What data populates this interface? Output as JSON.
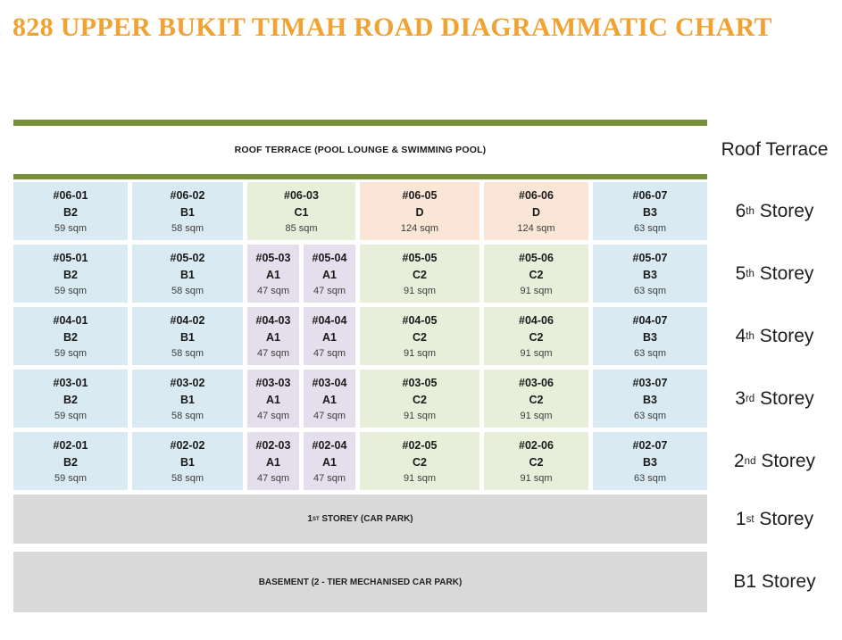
{
  "title": "828 UPPER BUKIT TIMAH ROAD DIAGRAMMATIC CHART",
  "colors": {
    "title_orange": "#F0A232",
    "bar_green": "#78923C",
    "cell_blue": "#D9EAF3",
    "cell_green": "#E7EFDB",
    "cell_purple": "#E5DEED",
    "cell_peach": "#FBE5D6",
    "cell_gray": "#D9D9D9"
  },
  "roof": {
    "text": "ROOF TERRACE (POOL LOUNGE & SWIMMING POOL)",
    "label": {
      "pre": "Roof Terrace",
      "sup": "",
      "post": ""
    }
  },
  "storeys": [
    {
      "label": {
        "pre": "6",
        "sup": "th",
        "post": " Storey"
      },
      "units": [
        {
          "no": "#06-01",
          "type": "B2",
          "area": "59 sqm",
          "color": "cell_blue",
          "span": 1
        },
        {
          "no": "#06-02",
          "type": "B1",
          "area": "58 sqm",
          "color": "cell_blue",
          "span": 1
        },
        {
          "no": "#06-03",
          "type": "C1",
          "area": "85 sqm",
          "color": "cell_green",
          "span": 2
        },
        {
          "no": "#06-05",
          "type": "D",
          "area": "124 sqm",
          "color": "cell_peach",
          "span": 1
        },
        {
          "no": "#06-06",
          "type": "D",
          "area": "124 sqm",
          "color": "cell_peach",
          "span": 1
        },
        {
          "no": "#06-07",
          "type": "B3",
          "area": "63 sqm",
          "color": "cell_blue",
          "span": 1
        }
      ]
    },
    {
      "label": {
        "pre": "5",
        "sup": "th",
        "post": " Storey"
      },
      "units": [
        {
          "no": "#05-01",
          "type": "B2",
          "area": "59 sqm",
          "color": "cell_blue",
          "span": 1
        },
        {
          "no": "#05-02",
          "type": "B1",
          "area": "58 sqm",
          "color": "cell_blue",
          "span": 1
        },
        {
          "no": "#05-03",
          "type": "A1",
          "area": "47 sqm",
          "color": "cell_purple",
          "span": 1
        },
        {
          "no": "#05-04",
          "type": "A1",
          "area": "47 sqm",
          "color": "cell_purple",
          "span": 1
        },
        {
          "no": "#05-05",
          "type": "C2",
          "area": "91 sqm",
          "color": "cell_green",
          "span": 1
        },
        {
          "no": "#05-06",
          "type": "C2",
          "area": "91 sqm",
          "color": "cell_green",
          "span": 1
        },
        {
          "no": "#05-07",
          "type": "B3",
          "area": "63 sqm",
          "color": "cell_blue",
          "span": 1
        }
      ]
    },
    {
      "label": {
        "pre": "4",
        "sup": "th",
        "post": " Storey"
      },
      "units": [
        {
          "no": "#04-01",
          "type": "B2",
          "area": "59 sqm",
          "color": "cell_blue",
          "span": 1
        },
        {
          "no": "#04-02",
          "type": "B1",
          "area": "58 sqm",
          "color": "cell_blue",
          "span": 1
        },
        {
          "no": "#04-03",
          "type": "A1",
          "area": "47 sqm",
          "color": "cell_purple",
          "span": 1
        },
        {
          "no": "#04-04",
          "type": "A1",
          "area": "47 sqm",
          "color": "cell_purple",
          "span": 1
        },
        {
          "no": "#04-05",
          "type": "C2",
          "area": "91 sqm",
          "color": "cell_green",
          "span": 1
        },
        {
          "no": "#04-06",
          "type": "C2",
          "area": "91 sqm",
          "color": "cell_green",
          "span": 1
        },
        {
          "no": "#04-07",
          "type": "B3",
          "area": "63 sqm",
          "color": "cell_blue",
          "span": 1
        }
      ]
    },
    {
      "label": {
        "pre": "3",
        "sup": "rd",
        "post": " Storey"
      },
      "units": [
        {
          "no": "#03-01",
          "type": "B2",
          "area": "59 sqm",
          "color": "cell_blue",
          "span": 1
        },
        {
          "no": "#03-02",
          "type": "B1",
          "area": "58 sqm",
          "color": "cell_blue",
          "span": 1
        },
        {
          "no": "#03-03",
          "type": "A1",
          "area": "47 sqm",
          "color": "cell_purple",
          "span": 1
        },
        {
          "no": "#03-04",
          "type": "A1",
          "area": "47 sqm",
          "color": "cell_purple",
          "span": 1
        },
        {
          "no": "#03-05",
          "type": "C2",
          "area": "91 sqm",
          "color": "cell_green",
          "span": 1
        },
        {
          "no": "#03-06",
          "type": "C2",
          "area": "91 sqm",
          "color": "cell_green",
          "span": 1
        },
        {
          "no": "#03-07",
          "type": "B3",
          "area": "63 sqm",
          "color": "cell_blue",
          "span": 1
        }
      ]
    },
    {
      "label": {
        "pre": "2",
        "sup": "nd",
        "post": " Storey"
      },
      "units": [
        {
          "no": "#02-01",
          "type": "B2",
          "area": "59 sqm",
          "color": "cell_blue",
          "span": 1
        },
        {
          "no": "#02-02",
          "type": "B1",
          "area": "58 sqm",
          "color": "cell_blue",
          "span": 1
        },
        {
          "no": "#02-03",
          "type": "A1",
          "area": "47 sqm",
          "color": "cell_purple",
          "span": 1
        },
        {
          "no": "#02-04",
          "type": "A1",
          "area": "47 sqm",
          "color": "cell_purple",
          "span": 1
        },
        {
          "no": "#02-05",
          "type": "C2",
          "area": "91 sqm",
          "color": "cell_green",
          "span": 1
        },
        {
          "no": "#02-06",
          "type": "C2",
          "area": "91 sqm",
          "color": "cell_green",
          "span": 1
        },
        {
          "no": "#02-07",
          "type": "B3",
          "area": "63 sqm",
          "color": "cell_blue",
          "span": 1
        }
      ]
    }
  ],
  "first_storey": {
    "text": {
      "pre": "1",
      "sup": "ST",
      "post": " STOREY (CAR PARK)"
    },
    "label": {
      "pre": "1",
      "sup": "st",
      "post": " Storey"
    }
  },
  "basement": {
    "text": "BASEMENT (2 - TIER MECHANISED CAR PARK)",
    "label": {
      "pre": "B1 Storey",
      "sup": "",
      "post": ""
    }
  }
}
